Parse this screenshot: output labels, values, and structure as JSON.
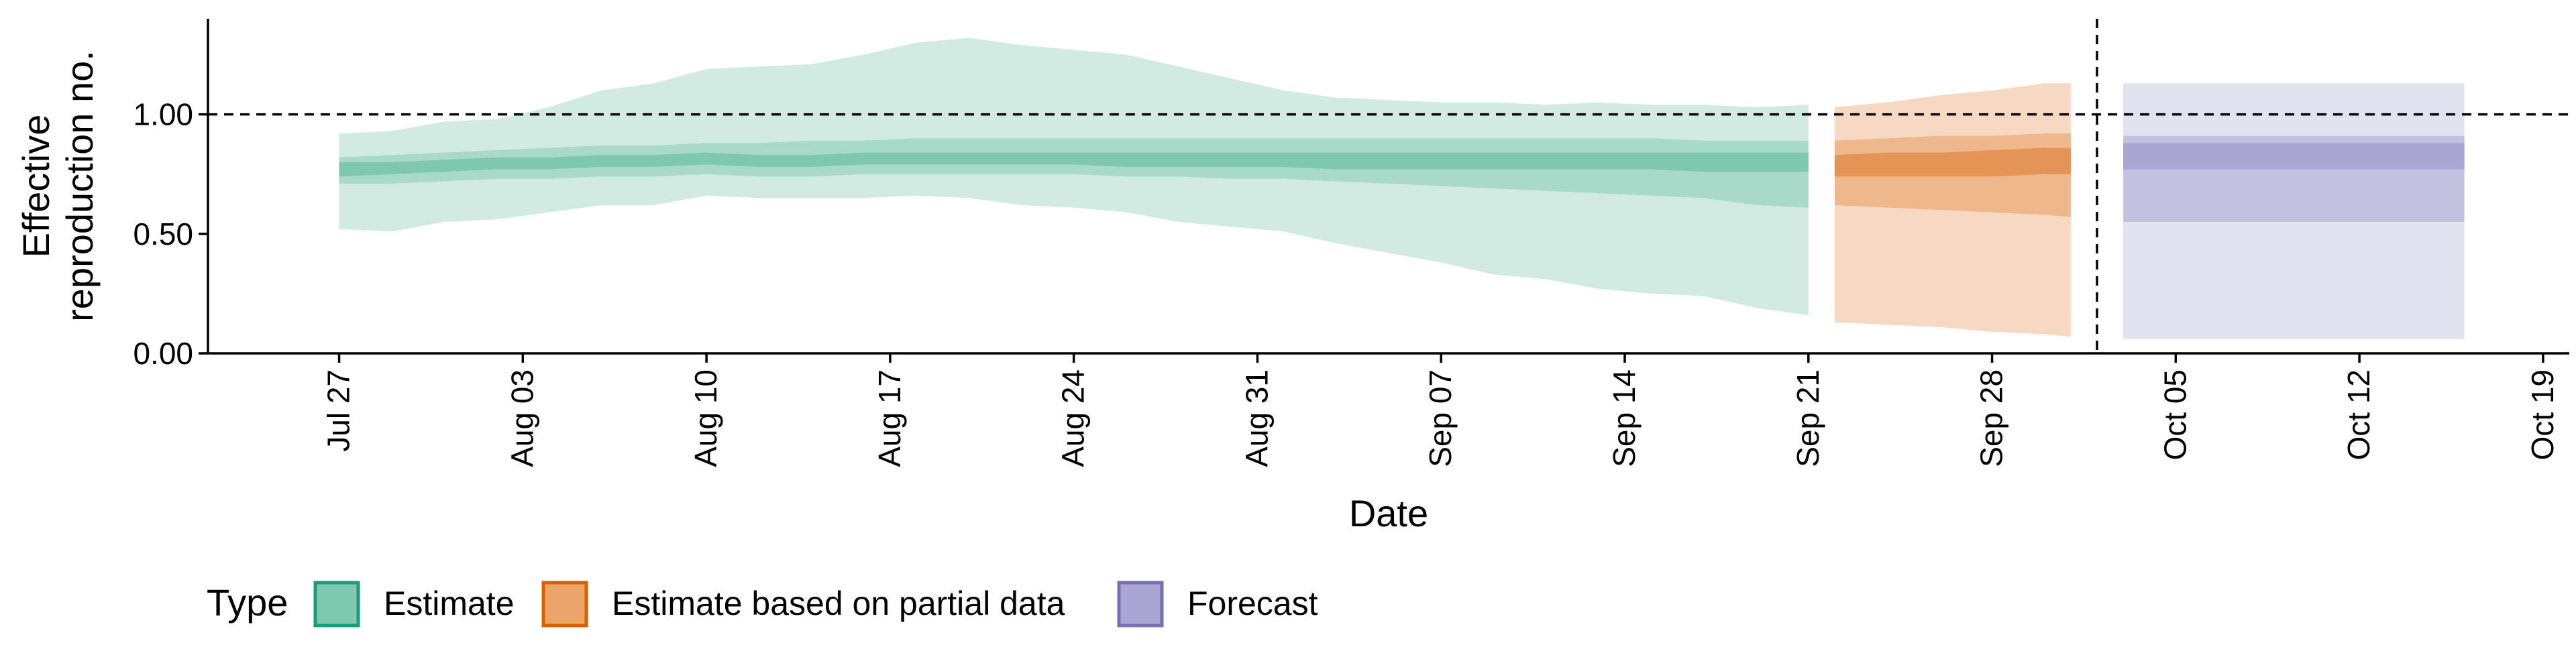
{
  "chart_data": {
    "type": "area",
    "xlabel": "Date",
    "ylabel_lines": [
      "Effective",
      "reproduction no."
    ],
    "ylim": [
      0,
      1.4
    ],
    "yticks": [
      {
        "value": 0.0,
        "label": "0.00"
      },
      {
        "value": 0.5,
        "label": "0.50"
      },
      {
        "value": 1.0,
        "label": "1.00"
      }
    ],
    "x_range": [
      "2020-07-22",
      "2020-10-20"
    ],
    "xticks": [
      {
        "date": "2020-07-27",
        "label": "Jul 27"
      },
      {
        "date": "2020-08-03",
        "label": "Aug 03"
      },
      {
        "date": "2020-08-10",
        "label": "Aug 10"
      },
      {
        "date": "2020-08-17",
        "label": "Aug 17"
      },
      {
        "date": "2020-08-24",
        "label": "Aug 24"
      },
      {
        "date": "2020-08-31",
        "label": "Aug 31"
      },
      {
        "date": "2020-09-07",
        "label": "Sep 07"
      },
      {
        "date": "2020-09-14",
        "label": "Sep 14"
      },
      {
        "date": "2020-09-21",
        "label": "Sep 21"
      },
      {
        "date": "2020-09-28",
        "label": "Sep 28"
      },
      {
        "date": "2020-10-05",
        "label": "Oct 05"
      },
      {
        "date": "2020-10-12",
        "label": "Oct 12"
      },
      {
        "date": "2020-10-19",
        "label": "Oct 19"
      }
    ],
    "reference_line_y": 1.0,
    "forecast_start": "2020-10-02",
    "grid": false,
    "legend": {
      "title": "Type",
      "position": "bottom-left",
      "items": [
        {
          "label": "Estimate",
          "fill": "#7ec8b0",
          "stroke": "#1b9e77"
        },
        {
          "label": "Estimate based on partial data",
          "fill": "#eba46a",
          "stroke": "#d95f02"
        },
        {
          "label": "Forecast",
          "fill": "#aaa5d3",
          "stroke": "#7570b3"
        }
      ]
    },
    "series": [
      {
        "name": "Estimate",
        "colors": {
          "outer": "#d1ebe2",
          "mid": "#a9d9c9",
          "inner": "#7ec8b0"
        },
        "dates": [
          "2020-07-27",
          "2020-07-29",
          "2020-07-31",
          "2020-08-02",
          "2020-08-04",
          "2020-08-06",
          "2020-08-08",
          "2020-08-10",
          "2020-08-12",
          "2020-08-14",
          "2020-08-16",
          "2020-08-18",
          "2020-08-20",
          "2020-08-22",
          "2020-08-24",
          "2020-08-26",
          "2020-08-28",
          "2020-08-30",
          "2020-09-01",
          "2020-09-03",
          "2020-09-05",
          "2020-09-07",
          "2020-09-09",
          "2020-09-11",
          "2020-09-13",
          "2020-09-15",
          "2020-09-17",
          "2020-09-19",
          "2020-09-21"
        ],
        "lower90": [
          0.52,
          0.51,
          0.55,
          0.56,
          0.59,
          0.62,
          0.62,
          0.66,
          0.65,
          0.65,
          0.65,
          0.66,
          0.65,
          0.62,
          0.61,
          0.59,
          0.55,
          0.53,
          0.51,
          0.46,
          0.42,
          0.38,
          0.33,
          0.31,
          0.27,
          0.25,
          0.24,
          0.19,
          0.16
        ],
        "upper90": [
          0.92,
          0.93,
          0.97,
          0.98,
          1.03,
          1.1,
          1.13,
          1.19,
          1.2,
          1.21,
          1.25,
          1.3,
          1.32,
          1.29,
          1.27,
          1.25,
          1.2,
          1.15,
          1.1,
          1.07,
          1.06,
          1.05,
          1.05,
          1.04,
          1.05,
          1.04,
          1.04,
          1.03,
          1.04
        ],
        "lower50": [
          0.71,
          0.71,
          0.72,
          0.73,
          0.73,
          0.74,
          0.74,
          0.75,
          0.74,
          0.74,
          0.75,
          0.75,
          0.75,
          0.75,
          0.75,
          0.74,
          0.74,
          0.73,
          0.73,
          0.72,
          0.71,
          0.7,
          0.69,
          0.68,
          0.67,
          0.66,
          0.65,
          0.62,
          0.61
        ],
        "upper50": [
          0.82,
          0.83,
          0.84,
          0.85,
          0.86,
          0.87,
          0.87,
          0.88,
          0.88,
          0.89,
          0.89,
          0.9,
          0.9,
          0.9,
          0.9,
          0.9,
          0.9,
          0.9,
          0.9,
          0.9,
          0.9,
          0.9,
          0.9,
          0.9,
          0.9,
          0.9,
          0.89,
          0.89,
          0.89
        ],
        "lower20": [
          0.74,
          0.75,
          0.76,
          0.77,
          0.77,
          0.78,
          0.78,
          0.79,
          0.78,
          0.78,
          0.79,
          0.79,
          0.79,
          0.79,
          0.79,
          0.78,
          0.78,
          0.78,
          0.78,
          0.77,
          0.77,
          0.77,
          0.77,
          0.77,
          0.77,
          0.77,
          0.76,
          0.76,
          0.76
        ],
        "upper20": [
          0.8,
          0.8,
          0.81,
          0.82,
          0.82,
          0.83,
          0.83,
          0.84,
          0.83,
          0.83,
          0.84,
          0.84,
          0.84,
          0.84,
          0.84,
          0.84,
          0.84,
          0.84,
          0.84,
          0.84,
          0.84,
          0.84,
          0.84,
          0.84,
          0.84,
          0.84,
          0.84,
          0.84,
          0.84
        ]
      },
      {
        "name": "Estimate based on partial data",
        "colors": {
          "outer": "#f7d9c3",
          "mid": "#efb88c",
          "inner": "#e49457"
        },
        "dates": [
          "2020-09-22",
          "2020-09-24",
          "2020-09-26",
          "2020-09-28",
          "2020-09-30",
          "2020-10-01"
        ],
        "lower90": [
          0.13,
          0.12,
          0.11,
          0.09,
          0.08,
          0.07
        ],
        "upper90": [
          1.03,
          1.05,
          1.08,
          1.1,
          1.13,
          1.13
        ],
        "lower50": [
          0.62,
          0.61,
          0.6,
          0.59,
          0.58,
          0.57
        ],
        "upper50": [
          0.89,
          0.9,
          0.91,
          0.91,
          0.92,
          0.92
        ],
        "lower20": [
          0.74,
          0.74,
          0.74,
          0.74,
          0.75,
          0.75
        ],
        "upper20": [
          0.83,
          0.84,
          0.84,
          0.85,
          0.86,
          0.86
        ]
      },
      {
        "name": "Forecast",
        "colors": {
          "outer": "#e3e2f0",
          "mid": "#c3c0e0",
          "inner": "#aaa5d3"
        },
        "dates": [
          "2020-10-03",
          "2020-10-16"
        ],
        "lower90": [
          0.06,
          0.06
        ],
        "upper90": [
          1.13,
          1.13
        ],
        "lower50": [
          0.55,
          0.55
        ],
        "upper50": [
          0.91,
          0.91
        ],
        "lower20": [
          0.77,
          0.77
        ],
        "upper20": [
          0.88,
          0.88
        ]
      }
    ]
  }
}
